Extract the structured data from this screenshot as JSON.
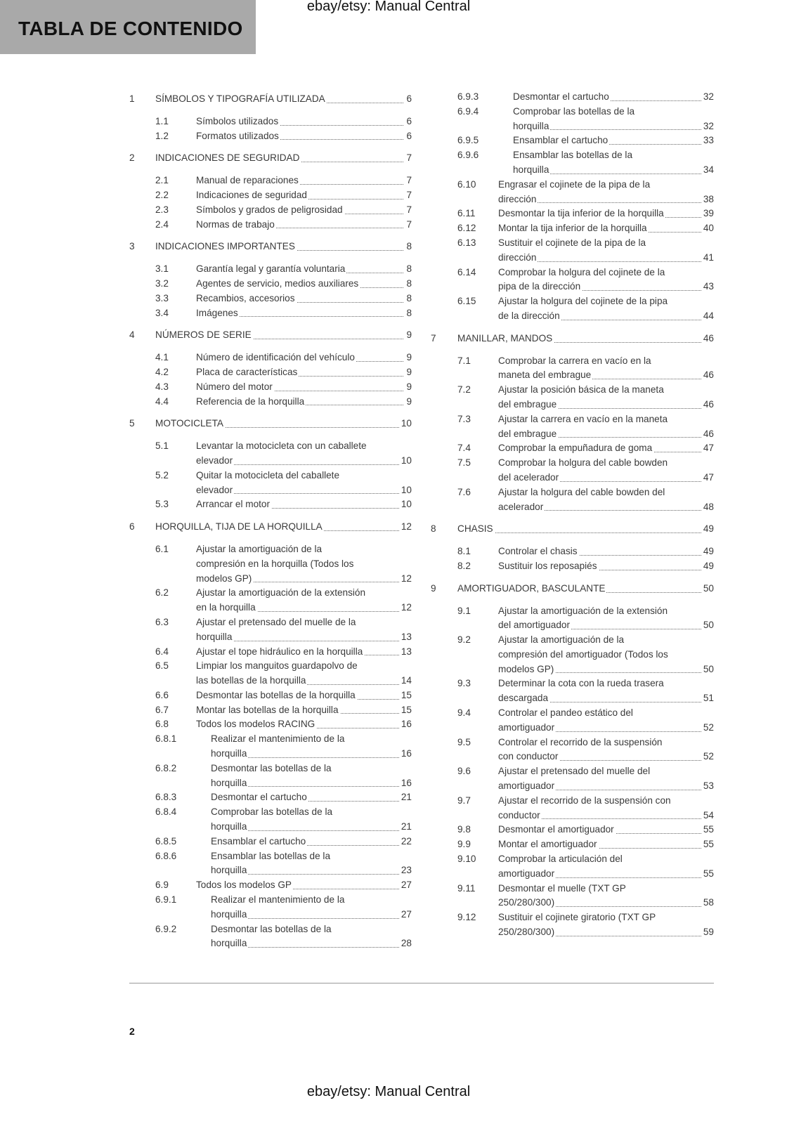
{
  "header": {
    "title": "TABLA DE CONTENIDO",
    "watermark": "ebay/etsy: Manual Central"
  },
  "footer": {
    "page_number": "2",
    "watermark": "ebay/etsy: Manual Central"
  },
  "toc": {
    "left": [
      {
        "num": "1",
        "lines": [
          "SÍMBOLOS Y TIPOGRAFÍA UTILIZADA"
        ],
        "page": "6"
      },
      {
        "num": "1.1",
        "lines": [
          "Símbolos utilizados"
        ],
        "page": "6"
      },
      {
        "num": "1.2",
        "lines": [
          "Formatos utilizados"
        ],
        "page": "6"
      },
      {
        "num": "2",
        "lines": [
          "INDICACIONES DE SEGURIDAD"
        ],
        "page": "7"
      },
      {
        "num": "2.1",
        "lines": [
          "Manual de reparaciones"
        ],
        "page": "7"
      },
      {
        "num": "2.2",
        "lines": [
          "Indicaciones de seguridad"
        ],
        "page": "7"
      },
      {
        "num": "2.3",
        "lines": [
          "Símbolos y grados de peligrosidad"
        ],
        "page": "7"
      },
      {
        "num": "2.4",
        "lines": [
          "Normas de trabajo"
        ],
        "page": "7"
      },
      {
        "num": "3",
        "lines": [
          "INDICACIONES IMPORTANTES"
        ],
        "page": "8"
      },
      {
        "num": "3.1",
        "lines": [
          "Garantía legal y garantía voluntaria"
        ],
        "page": "8"
      },
      {
        "num": "3.2",
        "lines": [
          "Agentes de servicio, medios auxiliares"
        ],
        "page": "8"
      },
      {
        "num": "3.3",
        "lines": [
          "Recambios, accesorios"
        ],
        "page": "8"
      },
      {
        "num": "3.4",
        "lines": [
          "Imágenes"
        ],
        "page": "8"
      },
      {
        "num": "4",
        "lines": [
          "NÚMEROS DE SERIE"
        ],
        "page": "9"
      },
      {
        "num": "4.1",
        "lines": [
          "Número de identificación del vehículo"
        ],
        "page": "9"
      },
      {
        "num": "4.2",
        "lines": [
          "Placa de características"
        ],
        "page": "9"
      },
      {
        "num": "4.3",
        "lines": [
          "Número del motor"
        ],
        "page": "9"
      },
      {
        "num": "4.4",
        "lines": [
          "Referencia de la horquilla"
        ],
        "page": "9"
      },
      {
        "num": "5",
        "lines": [
          "MOTOCICLETA"
        ],
        "page": "10"
      },
      {
        "num": "5.1",
        "lines": [
          "Levantar la motocicleta con un caballete",
          "elevador"
        ],
        "page": "10"
      },
      {
        "num": "5.2",
        "lines": [
          "Quitar la motocicleta del caballete",
          "elevador"
        ],
        "page": "10"
      },
      {
        "num": "5.3",
        "lines": [
          "Arrancar el motor"
        ],
        "page": "10"
      },
      {
        "num": "6",
        "lines": [
          "HORQUILLA, TIJA DE LA HORQUILLA"
        ],
        "page": "12"
      },
      {
        "num": "6.1",
        "lines": [
          "Ajustar la amortiguación de la",
          "compresión en la horquilla (Todos los",
          "modelos GP)"
        ],
        "page": "12"
      },
      {
        "num": "6.2",
        "lines": [
          "Ajustar la amortiguación de la extensión",
          "en la horquilla"
        ],
        "page": "12"
      },
      {
        "num": "6.3",
        "lines": [
          "Ajustar el pretensado del muelle de la",
          "horquilla"
        ],
        "page": "13"
      },
      {
        "num": "6.4",
        "lines": [
          "Ajustar el tope hidráulico en la horquilla"
        ],
        "page": "13"
      },
      {
        "num": "6.5",
        "lines": [
          "Limpiar los manguitos guardapolvo de",
          "las botellas de la horquilla"
        ],
        "page": "14"
      },
      {
        "num": "6.6",
        "lines": [
          "Desmontar las botellas de la horquilla"
        ],
        "page": "15"
      },
      {
        "num": "6.7",
        "lines": [
          "Montar las botellas de la horquilla"
        ],
        "page": "15"
      },
      {
        "num": "6.8",
        "lines": [
          "Todos los modelos RACING"
        ],
        "page": "16"
      },
      {
        "num": "6.8.1",
        "lines": [
          "Realizar el mantenimiento de la",
          "horquilla"
        ],
        "page": "16"
      },
      {
        "num": "6.8.2",
        "lines": [
          "Desmontar las botellas de la",
          "horquilla"
        ],
        "page": "16"
      },
      {
        "num": "6.8.3",
        "lines": [
          "Desmontar el cartucho"
        ],
        "page": "21"
      },
      {
        "num": "6.8.4",
        "lines": [
          "Comprobar las botellas de la",
          "horquilla"
        ],
        "page": "21"
      },
      {
        "num": "6.8.5",
        "lines": [
          "Ensamblar el cartucho"
        ],
        "page": "22"
      },
      {
        "num": "6.8.6",
        "lines": [
          "Ensamblar las botellas de la",
          "horquilla"
        ],
        "page": "23"
      },
      {
        "num": "6.9",
        "lines": [
          "Todos los modelos GP"
        ],
        "page": "27"
      },
      {
        "num": "6.9.1",
        "lines": [
          "Realizar el mantenimiento de la",
          "horquilla"
        ],
        "page": "27"
      },
      {
        "num": "6.9.2",
        "lines": [
          "Desmontar las botellas de la",
          "horquilla"
        ],
        "page": "28"
      }
    ],
    "right": [
      {
        "num": "6.9.3",
        "lines": [
          "Desmontar el cartucho"
        ],
        "page": "32"
      },
      {
        "num": "6.9.4",
        "lines": [
          "Comprobar las botellas de la",
          "horquilla"
        ],
        "page": "32"
      },
      {
        "num": "6.9.5",
        "lines": [
          "Ensamblar el cartucho"
        ],
        "page": "33"
      },
      {
        "num": "6.9.6",
        "lines": [
          "Ensamblar las botellas de la",
          "horquilla"
        ],
        "page": "34"
      },
      {
        "num": "6.10",
        "lines": [
          "Engrasar el cojinete de la pipa de la",
          "dirección"
        ],
        "page": "38"
      },
      {
        "num": "6.11",
        "lines": [
          "Desmontar la tija inferior de la horquilla"
        ],
        "page": "39"
      },
      {
        "num": "6.12",
        "lines": [
          "Montar la tija inferior de la horquilla"
        ],
        "page": "40"
      },
      {
        "num": "6.13",
        "lines": [
          "Sustituir el cojinete de la pipa de la",
          "dirección"
        ],
        "page": "41"
      },
      {
        "num": "6.14",
        "lines": [
          "Comprobar la holgura del cojinete de la",
          "pipa de la dirección"
        ],
        "page": "43"
      },
      {
        "num": "6.15",
        "lines": [
          "Ajustar la holgura del cojinete de la pipa",
          "de la dirección"
        ],
        "page": "44"
      },
      {
        "num": "7",
        "lines": [
          "MANILLAR, MANDOS"
        ],
        "page": "46"
      },
      {
        "num": "7.1",
        "lines": [
          "Comprobar la carrera en vacío en la",
          "maneta del embrague"
        ],
        "page": "46"
      },
      {
        "num": "7.2",
        "lines": [
          "Ajustar la posición básica de la maneta",
          "del embrague"
        ],
        "page": "46"
      },
      {
        "num": "7.3",
        "lines": [
          "Ajustar la carrera en vacío en la maneta",
          "del embrague"
        ],
        "page": "46"
      },
      {
        "num": "7.4",
        "lines": [
          "Comprobar la empuñadura de goma"
        ],
        "page": "47"
      },
      {
        "num": "7.5",
        "lines": [
          "Comprobar la holgura del cable bowden",
          "del acelerador"
        ],
        "page": "47"
      },
      {
        "num": "7.6",
        "lines": [
          "Ajustar la holgura del cable bowden del",
          "acelerador"
        ],
        "page": "48"
      },
      {
        "num": "8",
        "lines": [
          "CHASIS"
        ],
        "page": "49"
      },
      {
        "num": "8.1",
        "lines": [
          "Controlar el chasis"
        ],
        "page": "49"
      },
      {
        "num": "8.2",
        "lines": [
          "Sustituir los reposapiés"
        ],
        "page": "49"
      },
      {
        "num": "9",
        "lines": [
          "AMORTIGUADOR, BASCULANTE"
        ],
        "page": "50"
      },
      {
        "num": "9.1",
        "lines": [
          "Ajustar la amortiguación de la extensión",
          "del amortiguador"
        ],
        "page": "50"
      },
      {
        "num": "9.2",
        "lines": [
          "Ajustar la amortiguación de la",
          "compresión del amortiguador (Todos los",
          "modelos GP)"
        ],
        "page": "50"
      },
      {
        "num": "9.3",
        "lines": [
          "Determinar la cota con la rueda trasera",
          "descargada"
        ],
        "page": "51"
      },
      {
        "num": "9.4",
        "lines": [
          "Controlar el pandeo estático del",
          "amortiguador"
        ],
        "page": "52"
      },
      {
        "num": "9.5",
        "lines": [
          "Controlar el recorrido de la suspensión",
          "con conductor"
        ],
        "page": "52"
      },
      {
        "num": "9.6",
        "lines": [
          "Ajustar el pretensado del muelle del",
          "amortiguador"
        ],
        "page": "53"
      },
      {
        "num": "9.7",
        "lines": [
          "Ajustar el recorrido de la suspensión con",
          "conductor"
        ],
        "page": "54"
      },
      {
        "num": "9.8",
        "lines": [
          "Desmontar el amortiguador"
        ],
        "page": "55"
      },
      {
        "num": "9.9",
        "lines": [
          "Montar el amortiguador"
        ],
        "page": "55"
      },
      {
        "num": "9.10",
        "lines": [
          "Comprobar la articulación del",
          "amortiguador"
        ],
        "page": "55"
      },
      {
        "num": "9.11",
        "lines": [
          "Desmontar el muelle (TXT GP",
          "250/280/300)"
        ],
        "page": "58"
      },
      {
        "num": "9.12",
        "lines": [
          "Sustituir el cojinete giratorio (TXT GP",
          "250/280/300)"
        ],
        "page": "59"
      }
    ]
  }
}
